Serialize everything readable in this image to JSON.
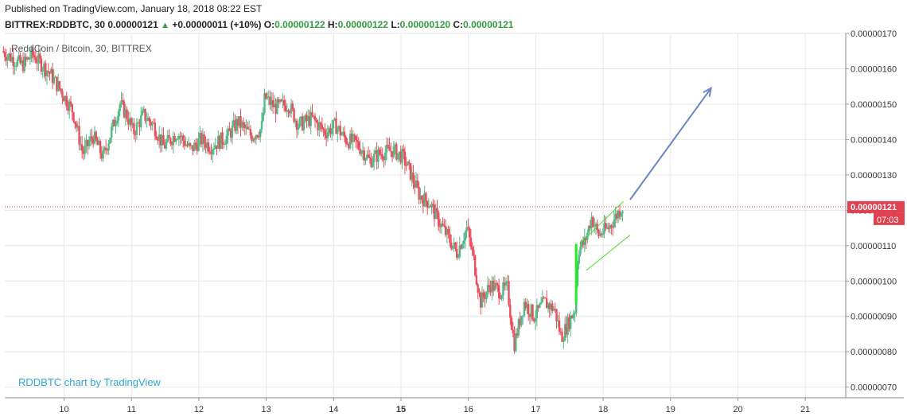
{
  "header": {
    "published": "Published on TradingView.com, January 18, 2018 08:22 EST",
    "symbol": "BITTREX:RDDBTC, 30",
    "last": "0.00000121",
    "change_arrow": "▲",
    "change": "+0.00000011 (+10%)",
    "o_label": "O:",
    "o_value": "0.00000122",
    "h_label": "H:",
    "h_value": "0.00000122",
    "l_label": "L:",
    "l_value": "0.00000120",
    "c_label": "C:",
    "c_value": "0.00000121"
  },
  "chart_title": "ReddCoin / Bitcoin, 30, BITTREX",
  "credit": "RDDBTC chart by TradingView",
  "colors": {
    "up": "#53b987",
    "down": "#eb4d5c",
    "grid": "#e6e6e6",
    "price_line": "#e04050",
    "arrow": "#6b86c4",
    "channel": "#44dd22",
    "credit": "#2aa6d6"
  },
  "price_label": {
    "value": "0.00000121",
    "countdown": "07:03"
  },
  "chart_data": {
    "type": "candlestick",
    "title": "ReddCoin / Bitcoin, 30, BITTREX",
    "x_ticks": [
      "10",
      "11",
      "12",
      "13",
      "14",
      "15",
      "16",
      "17",
      "18",
      "19",
      "20",
      "21"
    ],
    "x_tick_days": [
      10,
      11,
      12,
      13,
      14,
      15,
      16,
      17,
      18,
      19,
      20,
      21
    ],
    "xlim": [
      9.12,
      21.6
    ],
    "y_ticks": [
      "0.00000070",
      "0.00000080",
      "0.00000090",
      "0.00000100",
      "0.00000110",
      "0.00000120",
      "0.00000130",
      "0.00000140",
      "0.00000150",
      "0.00000160",
      "0.00000170"
    ],
    "ylim": [
      6.7e-07,
      1.7e-06
    ],
    "current_price": 1.21e-06,
    "anchors": [
      [
        9.1,
        1.65e-06
      ],
      [
        9.4,
        1.61e-06
      ],
      [
        9.55,
        1.64e-06
      ],
      [
        9.8,
        1.59e-06
      ],
      [
        10.0,
        1.53e-06
      ],
      [
        10.15,
        1.48e-06
      ],
      [
        10.3,
        1.36e-06
      ],
      [
        10.45,
        1.41e-06
      ],
      [
        10.6,
        1.35e-06
      ],
      [
        10.75,
        1.44e-06
      ],
      [
        10.85,
        1.5e-06
      ],
      [
        10.95,
        1.47e-06
      ],
      [
        11.05,
        1.42e-06
      ],
      [
        11.2,
        1.47e-06
      ],
      [
        11.35,
        1.44e-06
      ],
      [
        11.5,
        1.38e-06
      ],
      [
        11.7,
        1.42e-06
      ],
      [
        11.9,
        1.37e-06
      ],
      [
        12.05,
        1.4e-06
      ],
      [
        12.2,
        1.38e-06
      ],
      [
        12.45,
        1.41e-06
      ],
      [
        12.6,
        1.45e-06
      ],
      [
        12.8,
        1.41e-06
      ],
      [
        12.95,
        1.43e-06
      ],
      [
        13.0,
        1.52e-06
      ],
      [
        13.15,
        1.49e-06
      ],
      [
        13.35,
        1.5e-06
      ],
      [
        13.5,
        1.44e-06
      ],
      [
        13.7,
        1.46e-06
      ],
      [
        13.9,
        1.42e-06
      ],
      [
        14.05,
        1.44e-06
      ],
      [
        14.2,
        1.4e-06
      ],
      [
        14.35,
        1.39e-06
      ],
      [
        14.45,
        1.37e-06
      ],
      [
        14.55,
        1.34e-06
      ],
      [
        14.7,
        1.36e-06
      ],
      [
        14.9,
        1.37e-06
      ],
      [
        15.05,
        1.35e-06
      ],
      [
        15.15,
        1.31e-06
      ],
      [
        15.3,
        1.24e-06
      ],
      [
        15.45,
        1.22e-06
      ],
      [
        15.55,
        1.18e-06
      ],
      [
        15.7,
        1.13e-06
      ],
      [
        15.85,
        1.08e-06
      ],
      [
        16.0,
        1.15e-06
      ],
      [
        16.1,
        1.06e-06
      ],
      [
        16.2,
        9.4e-07
      ],
      [
        16.35,
        9.9e-07
      ],
      [
        16.5,
        9.7e-07
      ],
      [
        16.6,
        9.8e-07
      ],
      [
        16.7,
        8.2e-07
      ],
      [
        16.85,
        9.4e-07
      ],
      [
        17.0,
        9e-07
      ],
      [
        17.15,
        9.4e-07
      ],
      [
        17.3,
        9.2e-07
      ],
      [
        17.4,
        8.4e-07
      ],
      [
        17.5,
        8.8e-07
      ],
      [
        17.6,
        9.2e-07
      ],
      [
        17.65,
        1.09e-06
      ],
      [
        17.75,
        1.11e-06
      ],
      [
        17.85,
        1.18e-06
      ],
      [
        17.95,
        1.13e-06
      ],
      [
        18.1,
        1.15e-06
      ],
      [
        18.2,
        1.18e-06
      ],
      [
        18.3,
        1.21e-06
      ]
    ],
    "arrow": {
      "from": [
        18.4,
        1.23e-06
      ],
      "to": [
        19.6,
        1.545e-06
      ]
    },
    "channel": [
      {
        "from": [
          17.65,
          1.105e-06
        ],
        "to": [
          18.3,
          1.225e-06
        ]
      },
      {
        "from": [
          17.75,
          1.03e-06
        ],
        "to": [
          18.4,
          1.13e-06
        ]
      }
    ]
  }
}
